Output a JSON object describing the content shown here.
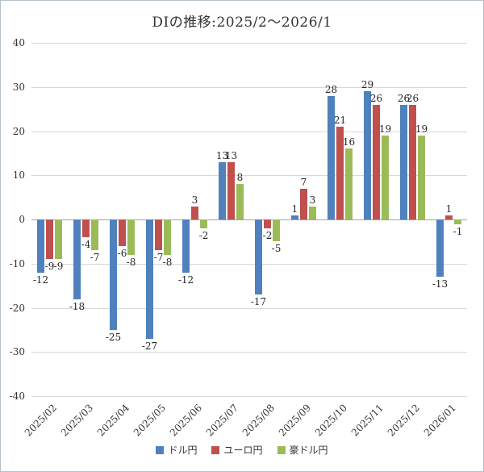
{
  "title": "DIの推移:2025/2〜2026/1",
  "chart_data": {
    "type": "bar",
    "title": "DIの推移:2025/2〜2026/1",
    "categories": [
      "2025/02",
      "2025/03",
      "2025/04",
      "2025/05",
      "2025/06",
      "2025/07",
      "2025/08",
      "2025/09",
      "2025/10",
      "2025/11",
      "2025/12",
      "2026/01"
    ],
    "series": [
      {
        "name": "ドル円",
        "color": "#4F81BD",
        "values": [
          -12,
          -18,
          -25,
          -27,
          -12,
          13,
          -17,
          1,
          28,
          29,
          26,
          -13
        ]
      },
      {
        "name": "ユーロ円",
        "color": "#C0504D",
        "values": [
          -9,
          -4,
          -6,
          -7,
          3,
          13,
          -2,
          7,
          21,
          26,
          26,
          1
        ]
      },
      {
        "name": "豪ドル円",
        "color": "#9BBB59",
        "values": [
          -9,
          -7,
          -8,
          -8,
          -2,
          8,
          -5,
          3,
          16,
          19,
          19,
          -1
        ]
      }
    ],
    "xlabel": "",
    "ylabel": "",
    "ylim": [
      -40,
      40
    ],
    "ytick_step": 10,
    "grid": true,
    "legend_position": "bottom",
    "data_labels": true
  }
}
